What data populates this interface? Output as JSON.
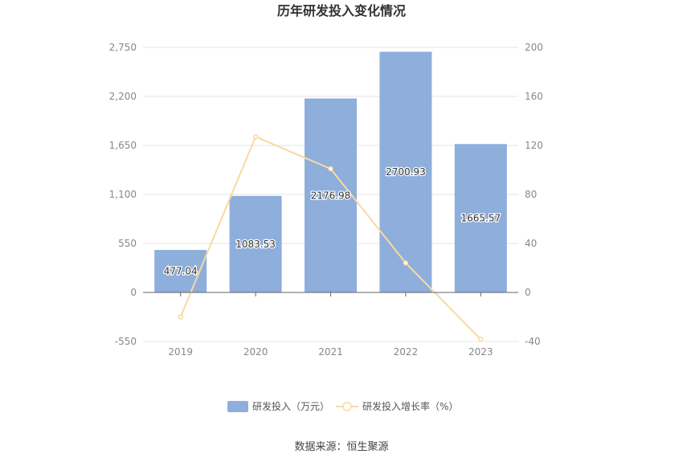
{
  "chart_data": {
    "type": "bar",
    "title": "历年研发投入变化情况",
    "categories": [
      "2019",
      "2020",
      "2021",
      "2022",
      "2023"
    ],
    "series": [
      {
        "name": "研发投入（万元）",
        "type": "bar",
        "axis": "left",
        "values": [
          477.04,
          1083.53,
          2176.98,
          2700.93,
          1665.57
        ],
        "labels": [
          "477.04",
          "1083.53",
          "2176.98",
          "2700.93",
          "1665.57"
        ],
        "color": "#8eaedb"
      },
      {
        "name": "研发投入增长率（%）",
        "type": "line",
        "axis": "right",
        "values": [
          -20,
          127.1,
          100.9,
          24.1,
          -38.3
        ],
        "color": "#f8d9a0"
      }
    ],
    "y_left": {
      "ticks": [
        "2,750",
        "2,200",
        "1,650",
        "1,100",
        "550",
        "0",
        "-550"
      ],
      "range": [
        -550,
        2750
      ]
    },
    "y_right": {
      "ticks": [
        "200",
        "160",
        "120",
        "80",
        "40",
        "0",
        "-40"
      ],
      "range": [
        -40,
        200
      ]
    },
    "legend_position": "bottom",
    "grid": true
  },
  "footer": {
    "source": "数据来源：恒生聚源"
  }
}
